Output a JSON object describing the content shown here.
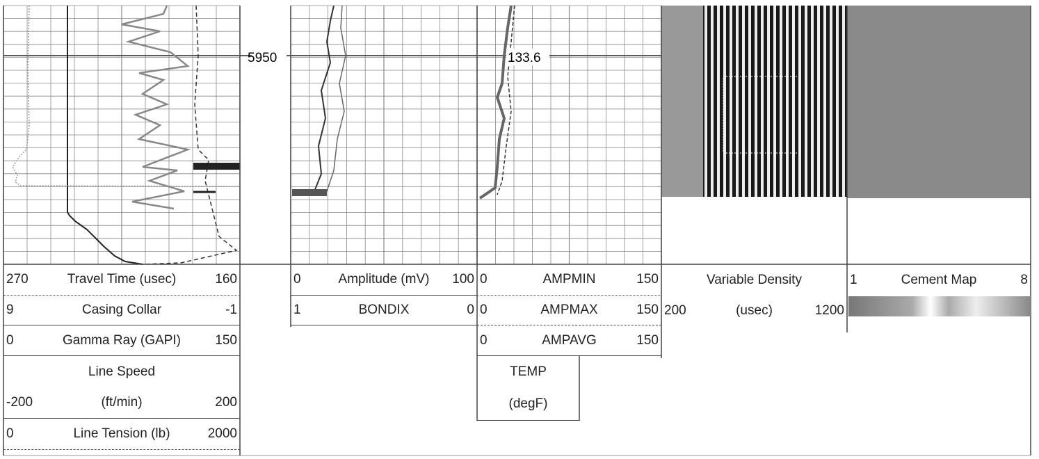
{
  "depth_label": "5950",
  "temperature_annotation": "133.6",
  "tracks": [
    {
      "rows": [
        {
          "left": "270",
          "center": "Travel Time (usec)",
          "right": "160"
        },
        {
          "left": "9",
          "center": "Casing Collar",
          "right": "-1"
        },
        {
          "left": "0",
          "center": "Gamma Ray (GAPI)",
          "right": "150"
        },
        {
          "center": "Line Speed"
        },
        {
          "left": "-200",
          "center": "(ft/min)",
          "right": "200"
        },
        {
          "left": "0",
          "center": "Line Tension (lb)",
          "right": "2000"
        }
      ]
    },
    {
      "rows": [
        {
          "left": "0",
          "center": "Amplitude (mV)",
          "right": "100"
        },
        {
          "left": "1",
          "center": "BONDIX",
          "right": "0"
        }
      ]
    },
    {
      "rows": [
        {
          "left": "0",
          "center": "AMPMIN",
          "right": "150"
        },
        {
          "left": "0",
          "center": "AMPMAX",
          "right": "150"
        },
        {
          "left": "0",
          "center": "AMPAVG",
          "right": "150"
        },
        {
          "center": "TEMP"
        },
        {
          "center": "(degF)"
        }
      ]
    },
    {
      "rows": [
        {
          "center": "Variable Density"
        },
        {
          "left": "200",
          "center": "(usec)",
          "right": "1200"
        }
      ]
    },
    {
      "rows": [
        {
          "left": "1",
          "center": "Cement Map",
          "right": "8"
        }
      ]
    }
  ]
}
